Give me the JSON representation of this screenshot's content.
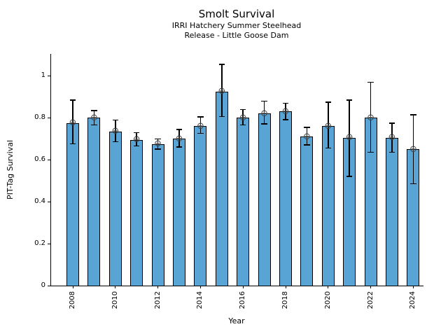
{
  "chart_data": {
    "type": "bar",
    "title": "Smolt Survival",
    "subtitle": [
      "IRRI Hatchery Summer Steelhead",
      "Release - Little Goose Dam"
    ],
    "xlabel": "Year",
    "ylabel": "PIT-Tag Survival",
    "categories": [
      2008,
      2009,
      2010,
      2011,
      2012,
      2013,
      2014,
      2015,
      2016,
      2017,
      2018,
      2019,
      2020,
      2021,
      2022,
      2023,
      2024
    ],
    "values": [
      0.775,
      0.8,
      0.735,
      0.695,
      0.675,
      0.7,
      0.76,
      0.925,
      0.8,
      0.82,
      0.83,
      0.71,
      0.76,
      0.705,
      0.8,
      0.705,
      0.65
    ],
    "error_low": [
      0.675,
      0.765,
      0.685,
      0.665,
      0.65,
      0.66,
      0.725,
      0.805,
      0.765,
      0.77,
      0.79,
      0.67,
      0.655,
      0.52,
      0.635,
      0.635,
      0.485
    ],
    "error_high": [
      0.885,
      0.835,
      0.79,
      0.73,
      0.7,
      0.745,
      0.805,
      1.055,
      0.84,
      0.88,
      0.87,
      0.755,
      0.875,
      0.885,
      0.97,
      0.775,
      0.815
    ],
    "x_tick_labels": [
      "2008",
      "2010",
      "2012",
      "2014",
      "2016",
      "2018",
      "2020",
      "2022",
      "2024"
    ],
    "y_ticks": [
      0,
      0.2,
      0.4,
      0.6,
      0.8,
      1
    ],
    "y_tick_labels": [
      "0",
      "0.2",
      "0.4",
      "0.6",
      "0.8",
      "1"
    ],
    "ylim": [
      0,
      1.1
    ],
    "grid": false,
    "legend": "none",
    "bar_color": "#58a4d4",
    "bar_edge_color": "#000000",
    "error_color": "#000000",
    "marker": "circle-plus",
    "marker_glyph": "⊕",
    "marker_color": "#444444"
  }
}
